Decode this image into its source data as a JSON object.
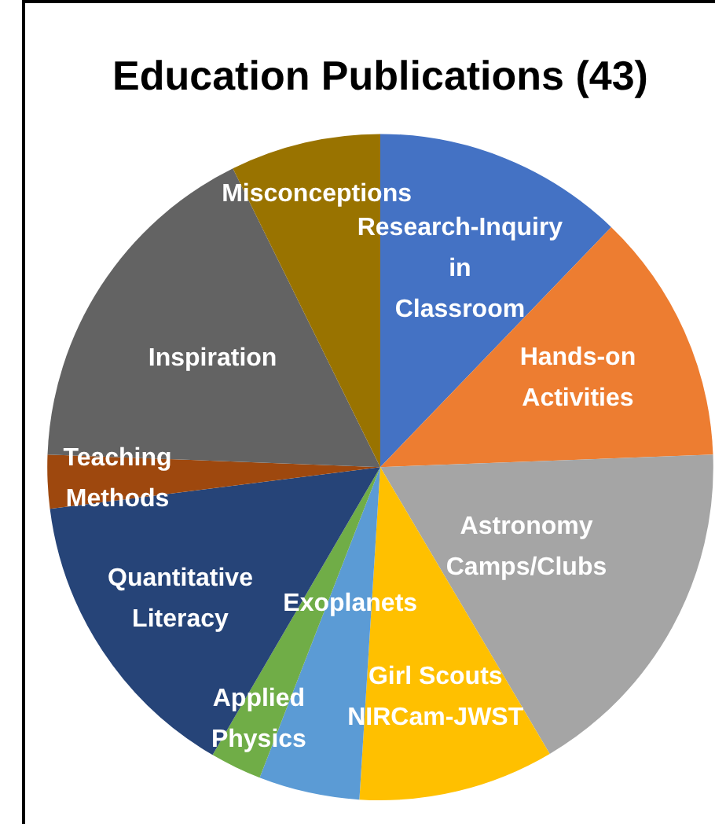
{
  "chart_data": {
    "type": "pie",
    "title": "Education Publications (43)",
    "categories": [
      "Research-Inquiry in Classroom",
      "Hands-on Activities",
      "Astronomy Camps/Clubs",
      "Girl Scouts NIRCam-JWST",
      "Exoplanets",
      "Applied Physics",
      "Quantitative Literacy",
      "Teaching Methods",
      "Inspiration",
      "Misconceptions"
    ],
    "values": [
      12.2,
      12.2,
      17.1,
      9.5,
      4.9,
      2.5,
      14.6,
      2.6,
      17.1,
      7.3
    ],
    "colors": [
      "#4472c4",
      "#ed7d31",
      "#a5a5a5",
      "#ffc000",
      "#5b9bd5",
      "#70ad47",
      "#264478",
      "#9e480e",
      "#636363",
      "#997300"
    ],
    "legend": false
  }
}
